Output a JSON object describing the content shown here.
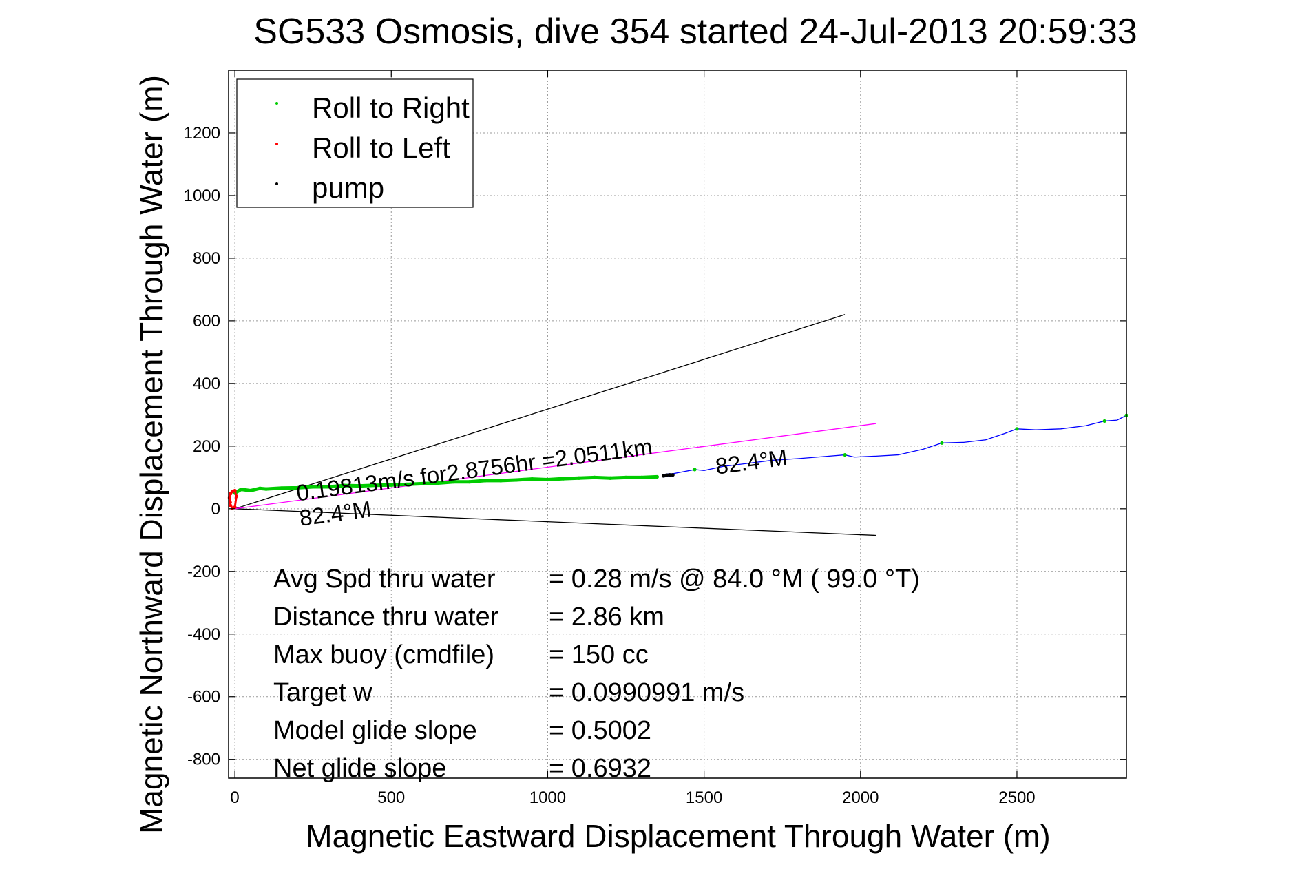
{
  "chart_data": {
    "type": "line",
    "title": "SG533 Osmosis, dive 354 started 24-Jul-2013 20:59:33",
    "xlabel": "Magnetic Eastward Displacement Through Water (m)",
    "ylabel": "Magnetic Northward Displacement Through Water (m)",
    "xlim": [
      -20,
      2850
    ],
    "ylim": [
      -860,
      1400
    ],
    "xticks": [
      0,
      500,
      1000,
      1500,
      2000,
      2500
    ],
    "yticks": [
      -800,
      -600,
      -400,
      -200,
      0,
      200,
      400,
      600,
      800,
      1000,
      1200
    ],
    "grid": true,
    "legend": {
      "placement": "top-left",
      "entries": [
        {
          "label": "Roll to Right",
          "color": "#00cc00"
        },
        {
          "label": "Roll to Left",
          "color": "#ff0000"
        },
        {
          "label": "pump",
          "color": "#000000"
        }
      ]
    },
    "series": [
      {
        "color": "#0000ff",
        "style": "line",
        "x": [
          1390,
          1470,
          1500,
          1560,
          1640,
          1720,
          1800,
          1900,
          1950,
          1980,
          2050,
          2120,
          2200,
          2260,
          2330,
          2400,
          2460,
          2500,
          2560,
          2640,
          2720,
          2780,
          2820,
          2850
        ],
        "y": [
          110,
          125,
          122,
          135,
          145,
          155,
          160,
          168,
          172,
          165,
          168,
          172,
          190,
          210,
          212,
          220,
          240,
          255,
          252,
          255,
          265,
          280,
          283,
          298
        ]
      },
      {
        "name": "Roll to Right",
        "color": "#00cc00",
        "style": "points",
        "x": [
          0,
          20,
          50,
          80,
          100,
          150,
          200,
          250,
          300,
          350,
          400,
          450,
          500,
          550,
          600,
          650,
          700,
          750,
          800,
          850,
          900,
          950,
          1000,
          1050,
          1100,
          1150,
          1200,
          1250,
          1300,
          1350,
          1470,
          1950,
          2260,
          2500,
          2780,
          2850
        ],
        "y": [
          50,
          62,
          58,
          65,
          63,
          66,
          67,
          70,
          70,
          74,
          73,
          75,
          76,
          78,
          80,
          82,
          86,
          86,
          90,
          90,
          92,
          95,
          93,
          96,
          98,
          100,
          98,
          100,
          100,
          102,
          125,
          172,
          210,
          255,
          280,
          298
        ]
      },
      {
        "name": "Roll to Left",
        "color": "#ff0000",
        "style": "points",
        "x": [
          -15,
          -17,
          -14,
          -8,
          0,
          5,
          0,
          -8,
          -14
        ],
        "y": [
          20,
          35,
          48,
          55,
          58,
          40,
          5,
          2,
          10
        ]
      },
      {
        "name": "pump",
        "color": "#000000",
        "style": "points",
        "x": [
          1370,
          1380,
          1390,
          1400
        ],
        "y": [
          105,
          107,
          108,
          108
        ]
      }
    ],
    "reference_lines": [
      {
        "color": "#000000",
        "x": [
          0,
          1950
        ],
        "y": [
          0,
          620
        ]
      },
      {
        "color": "#000000",
        "x": [
          0,
          2050
        ],
        "y": [
          0,
          -85
        ]
      },
      {
        "color": "#ff00ff",
        "x": [
          0,
          2050
        ],
        "y": [
          0,
          272
        ]
      }
    ],
    "annotations": [
      {
        "text": "0.19813m/s for2.8756hr =2.0511km",
        "x": 200,
        "y": 25,
        "rotate": -7.5
      },
      {
        "text": "82.4°M",
        "x": 1540,
        "y": 110,
        "rotate": -7.5
      },
      {
        "text": "82.4°M",
        "x": 210,
        "y": -55,
        "rotate": -7.5
      }
    ],
    "stats": [
      {
        "label": "Avg Spd thru water",
        "value": "=  0.28 m/s @  84.0 °M ( 99.0 °T)"
      },
      {
        "label": "Distance thru water",
        "value": "=  2.86 km"
      },
      {
        "label": "Max buoy (cmdfile)",
        "value": "= 150 cc"
      },
      {
        "label": "Target w",
        "value": "= 0.0990991 m/s"
      },
      {
        "label": "Model glide slope",
        "value": "= 0.5002"
      },
      {
        "label": "Net glide slope",
        "value": "= 0.6932"
      }
    ]
  }
}
